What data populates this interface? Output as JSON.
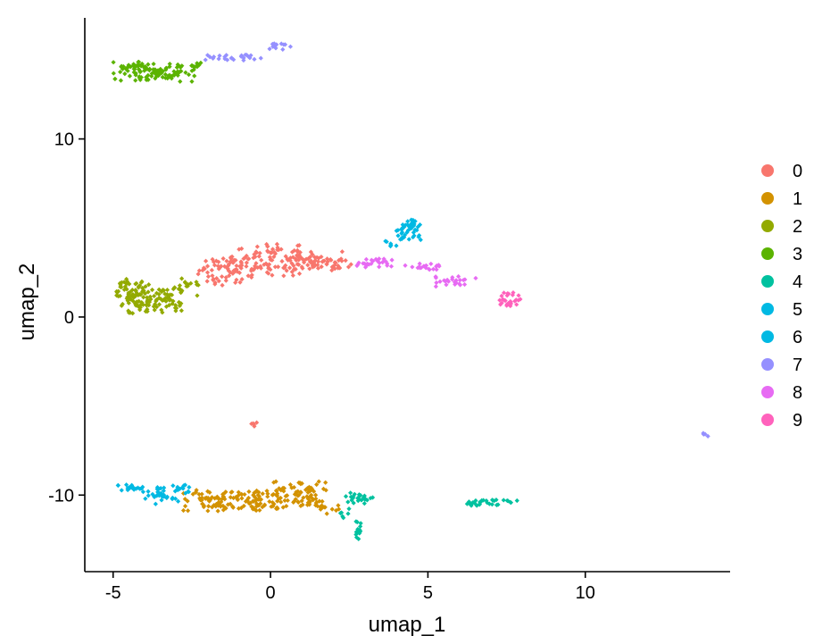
{
  "chart_data": {
    "type": "scatter",
    "title": "",
    "xlabel": "umap_1",
    "ylabel": "umap_2",
    "xlim": [
      -5.9,
      14.6
    ],
    "ylim": [
      -14.3,
      16.8
    ],
    "xticks": [
      -5,
      0,
      5,
      10
    ],
    "yticks": [
      -10,
      0,
      10
    ],
    "xtick_labels": [
      "-5",
      "0",
      "5",
      "10"
    ],
    "ytick_labels": [
      "-10",
      "0",
      "10"
    ],
    "grid": false,
    "legend_position": "right",
    "series": [
      {
        "name": "0",
        "color": "#F8766D",
        "clusters": [
          {
            "cx": -1.4,
            "cy": 2.6,
            "rx": 0.9,
            "ry": 0.9,
            "n": 70
          },
          {
            "cx": 0.0,
            "cy": 3.2,
            "rx": 1.0,
            "ry": 0.9,
            "n": 90
          },
          {
            "cx": 1.4,
            "cy": 3.2,
            "rx": 0.9,
            "ry": 0.6,
            "n": 60
          },
          {
            "cx": 2.3,
            "cy": 3.0,
            "rx": 0.3,
            "ry": 0.25,
            "n": 8
          },
          {
            "cx": -0.55,
            "cy": -6.0,
            "rx": 0.12,
            "ry": 0.15,
            "n": 5
          }
        ]
      },
      {
        "name": "1",
        "color": "#D39200",
        "clusters": [
          {
            "cx": -1.9,
            "cy": -10.3,
            "rx": 0.9,
            "ry": 0.6,
            "n": 60
          },
          {
            "cx": -0.6,
            "cy": -10.3,
            "rx": 0.9,
            "ry": 0.6,
            "n": 70
          },
          {
            "cx": 0.9,
            "cy": -9.9,
            "rx": 1.0,
            "ry": 0.8,
            "n": 80
          },
          {
            "cx": 1.8,
            "cy": -10.8,
            "rx": 0.4,
            "ry": 0.3,
            "n": 12
          }
        ]
      },
      {
        "name": "2",
        "color": "#93AA00",
        "clusters": [
          {
            "cx": -4.3,
            "cy": 1.2,
            "rx": 0.6,
            "ry": 1.1,
            "n": 90
          },
          {
            "cx": -3.4,
            "cy": 1.0,
            "rx": 0.7,
            "ry": 0.8,
            "n": 60
          },
          {
            "cx": -2.6,
            "cy": 1.7,
            "rx": 0.35,
            "ry": 0.5,
            "n": 15
          }
        ]
      },
      {
        "name": "3",
        "color": "#5BB300",
        "clusters": [
          {
            "cx": -4.1,
            "cy": 13.8,
            "rx": 0.9,
            "ry": 0.55,
            "n": 80
          },
          {
            "cx": -3.0,
            "cy": 13.7,
            "rx": 0.7,
            "ry": 0.5,
            "n": 45
          },
          {
            "cx": -2.4,
            "cy": 14.1,
            "rx": 0.25,
            "ry": 0.25,
            "n": 8
          }
        ]
      },
      {
        "name": "4",
        "color": "#00C19F",
        "clusters": [
          {
            "cx": 2.8,
            "cy": -10.2,
            "rx": 0.5,
            "ry": 0.35,
            "n": 25
          },
          {
            "cx": 2.8,
            "cy": -12.0,
            "rx": 0.12,
            "ry": 0.7,
            "n": 14
          },
          {
            "cx": 2.35,
            "cy": -11.1,
            "rx": 0.15,
            "ry": 0.4,
            "n": 6
          },
          {
            "cx": 7.0,
            "cy": -10.4,
            "rx": 0.9,
            "ry": 0.2,
            "n": 30
          }
        ]
      },
      {
        "name": "5",
        "color": "#00B9E3",
        "clusters": [
          {
            "cx": -4.4,
            "cy": -9.6,
            "rx": 0.5,
            "ry": 0.2,
            "n": 20
          },
          {
            "cx": -3.5,
            "cy": -10.0,
            "rx": 0.6,
            "ry": 0.5,
            "n": 35
          },
          {
            "cx": -2.8,
            "cy": -9.6,
            "rx": 0.3,
            "ry": 0.3,
            "n": 12
          }
        ]
      },
      {
        "name": "6",
        "color": "#00B9E3",
        "clusters": [
          {
            "cx": 4.4,
            "cy": 4.9,
            "rx": 0.4,
            "ry": 0.6,
            "n": 45
          },
          {
            "cx": 3.8,
            "cy": 4.1,
            "rx": 0.2,
            "ry": 0.2,
            "n": 6
          }
        ]
      },
      {
        "name": "7",
        "color": "#9590FF",
        "clusters": [
          {
            "cx": -1.3,
            "cy": 14.6,
            "rx": 1.0,
            "ry": 0.2,
            "n": 25
          },
          {
            "cx": 0.3,
            "cy": 15.2,
            "rx": 0.35,
            "ry": 0.2,
            "n": 12
          },
          {
            "cx": 13.8,
            "cy": -6.6,
            "rx": 0.1,
            "ry": 0.1,
            "n": 4
          }
        ]
      },
      {
        "name": "8",
        "color": "#E76BF3",
        "clusters": [
          {
            "cx": 3.5,
            "cy": 3.1,
            "rx": 0.5,
            "ry": 0.3,
            "n": 20
          },
          {
            "cx": 4.8,
            "cy": 2.8,
            "rx": 0.6,
            "ry": 0.2,
            "n": 20
          },
          {
            "cx": 6.0,
            "cy": 2.0,
            "rx": 0.8,
            "ry": 0.3,
            "n": 25
          },
          {
            "cx": 2.9,
            "cy": 2.9,
            "rx": 0.3,
            "ry": 0.15,
            "n": 6
          }
        ]
      },
      {
        "name": "9",
        "color": "#FF62BC",
        "clusters": [
          {
            "cx": 7.6,
            "cy": 1.0,
            "rx": 0.35,
            "ry": 0.4,
            "n": 30
          }
        ]
      }
    ]
  }
}
